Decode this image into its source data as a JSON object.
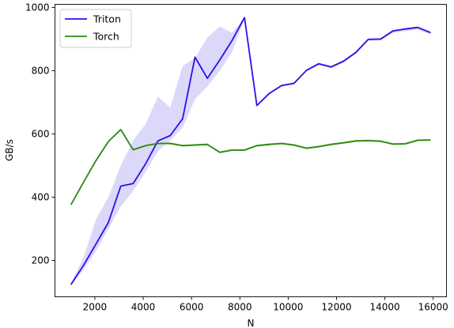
{
  "chart_data": {
    "type": "line",
    "title": "",
    "xlabel": "N",
    "ylabel": "GB/s",
    "xlim": [
      350,
      16550
    ],
    "ylim": [
      85,
      1010
    ],
    "xticks": [
      2000,
      4000,
      6000,
      8000,
      10000,
      12000,
      14000,
      16000
    ],
    "yticks": [
      200,
      400,
      600,
      800,
      1000
    ],
    "grid": false,
    "legend": "top-left",
    "x": [
      1024,
      1536,
      2048,
      2560,
      3072,
      3584,
      4096,
      4608,
      5120,
      5632,
      6144,
      6656,
      7168,
      7680,
      8192,
      8704,
      9216,
      9728,
      10240,
      10752,
      11264,
      11776,
      12288,
      12800,
      13312,
      13824,
      14336,
      14848,
      15360,
      15872
    ],
    "series": [
      {
        "name": "Triton",
        "color": "#2b10e8",
        "values": [
          125,
          185,
          252,
          320,
          435,
          443,
          505,
          578,
          595,
          648,
          843,
          776,
          834,
          896,
          968,
          690,
          728,
          753,
          760,
          801,
          822,
          812,
          830,
          858,
          899,
          900,
          926,
          932,
          937,
          921
        ],
        "band_low": [
          125,
          170,
          230,
          300,
          370,
          420,
          480,
          545,
          580,
          620,
          710,
          750,
          800,
          860,
          965,
          688,
          725,
          750,
          758,
          798,
          818,
          808,
          826,
          852,
          895,
          896,
          920,
          925,
          930,
          915
        ],
        "band_high": [
          130,
          210,
          330,
          400,
          500,
          580,
          630,
          718,
          683,
          815,
          840,
          905,
          940,
          920,
          970,
          692,
          732,
          757,
          764,
          804,
          826,
          816,
          834,
          862,
          903,
          904,
          930,
          935,
          940,
          925
        ],
        "band_color": "#d9d6fa"
      },
      {
        "name": "Torch",
        "color": "#2a8a0a",
        "values": [
          378,
          448,
          516,
          576,
          614,
          550,
          563,
          570,
          570,
          563,
          565,
          567,
          542,
          549,
          549,
          563,
          567,
          570,
          565,
          555,
          560,
          567,
          572,
          578,
          579,
          577,
          568,
          569,
          580,
          581
        ],
        "band_color": "#b8dca8"
      }
    ]
  }
}
